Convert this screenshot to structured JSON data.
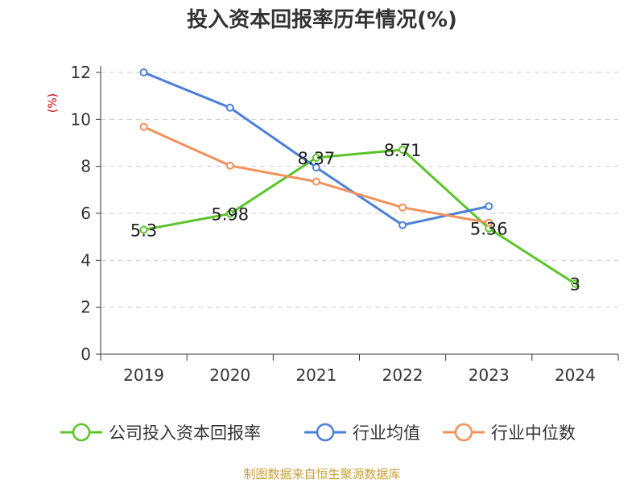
{
  "chart_data": {
    "type": "line",
    "title": "投入资本回报率历年情况(%)",
    "ylabel": "(%)",
    "xlabel": "",
    "categories": [
      "2019",
      "2020",
      "2021",
      "2022",
      "2023",
      "2024"
    ],
    "ylim": [
      0,
      12
    ],
    "yticks": [
      "0",
      "2",
      "4",
      "6",
      "8",
      "10",
      "12"
    ],
    "grid": true,
    "legend_position": "bottom",
    "series": [
      {
        "name": "公司投入资本回报率",
        "color": "#5cc42a",
        "values": [
          5.3,
          5.98,
          8.37,
          8.71,
          5.36,
          3
        ],
        "labels": [
          "5.3",
          "5.98",
          "8.37",
          "8.71",
          "5.36",
          "3"
        ]
      },
      {
        "name": "行业均值",
        "color": "#4a7fdc",
        "values": [
          12.0,
          10.5,
          7.95,
          5.5,
          6.3,
          null
        ],
        "labels": []
      },
      {
        "name": "行业中位数",
        "color": "#f2905a",
        "values": [
          9.68,
          8.03,
          7.35,
          6.25,
          5.6,
          null
        ],
        "labels": []
      }
    ],
    "source": "制图数据来自恒生聚源数据库"
  }
}
